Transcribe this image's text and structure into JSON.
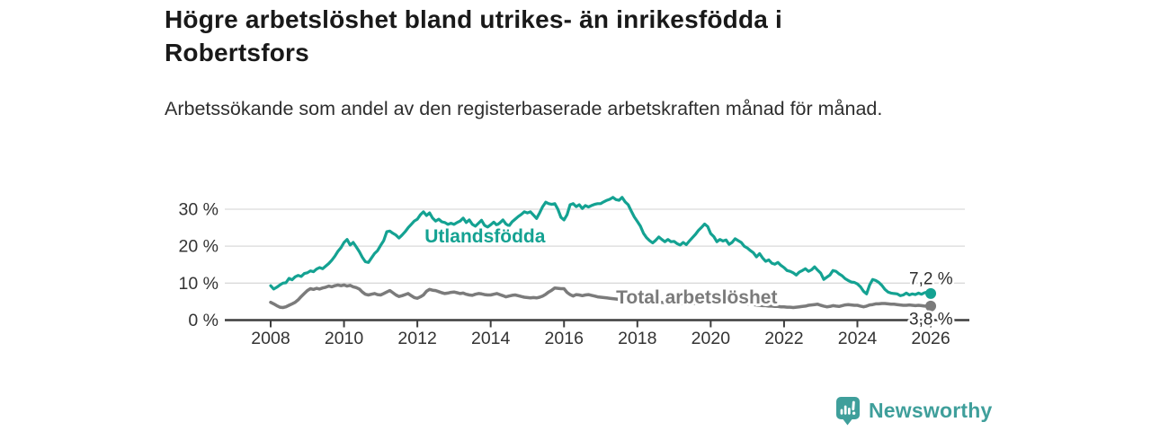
{
  "header": {
    "title": "Högre arbetslöshet bland utrikes- än inrikesfödda i Robertsfors",
    "subtitle": "Arbetssökande som andel av den registerbaserade arbetskraften månad för månad."
  },
  "footer": {
    "brand": "Newsworthy",
    "logo_icon": "bar-chart-speech-bubble-icon"
  },
  "colors": {
    "teal_series": "#14a292",
    "gray_series": "#7b7b7b",
    "logo_teal": "#3f9f9b",
    "grid": "#dadada",
    "axis": "#3d3d3d",
    "tick_text": "#333333",
    "value_text": "#2d2d2d"
  },
  "chart_data": {
    "type": "line",
    "title": "Högre arbetslöshet bland utrikes- än inrikesfödda i Robertsfors",
    "subtitle": "Arbetssökande som andel av den registerbaserade arbetskraften månad för månad.",
    "grid": true,
    "legend_position": "inline-labels",
    "x_start_year": 2008,
    "points_per_year": 12,
    "xlim_years": [
      2006.75,
      2026.95
    ],
    "ylim": [
      0,
      34
    ],
    "x_ticks": [
      "2008",
      "2010",
      "2012",
      "2014",
      "2016",
      "2018",
      "2020",
      "2022",
      "2024",
      "2026"
    ],
    "y_ticks": [
      "0 %",
      "10 %",
      "20 %",
      "30 %"
    ],
    "y_tick_values": [
      0,
      10,
      20,
      30
    ],
    "series": [
      {
        "name": "Utlandsfödda",
        "color": "#14a292",
        "end_value": 7.2,
        "end_label": "7,2 %",
        "end_label_side": "above",
        "label_anchor": {
          "year": 2012.2,
          "pct": 21.0
        },
        "values": [
          9.3,
          8.4,
          8.9,
          9.5,
          10.0,
          10.1,
          11.3,
          10.9,
          11.7,
          12.1,
          11.8,
          12.6,
          12.8,
          13.3,
          13.1,
          13.8,
          14.2,
          13.9,
          14.6,
          15.3,
          16.2,
          17.3,
          18.6,
          19.6,
          21.0,
          21.8,
          20.3,
          21.0,
          19.8,
          18.5,
          17.0,
          15.8,
          15.6,
          16.8,
          18.0,
          18.8,
          20.2,
          21.5,
          23.9,
          24.1,
          23.5,
          23.0,
          22.2,
          23.0,
          23.9,
          25.0,
          25.9,
          26.8,
          27.3,
          28.5,
          29.3,
          28.3,
          29.0,
          27.6,
          26.8,
          27.3,
          26.6,
          26.4,
          25.9,
          26.2,
          25.9,
          26.4,
          26.8,
          27.6,
          26.4,
          27.1,
          25.9,
          25.4,
          26.2,
          27.0,
          25.6,
          25.2,
          25.8,
          26.5,
          25.7,
          26.3,
          27.1,
          26.0,
          25.5,
          26.6,
          27.3,
          28.0,
          28.6,
          29.3,
          29.0,
          29.3,
          28.4,
          27.5,
          29.0,
          30.7,
          31.9,
          31.5,
          31.3,
          31.5,
          30.0,
          27.8,
          27.1,
          28.5,
          31.2,
          31.5,
          30.7,
          31.2,
          30.2,
          31.0,
          30.6,
          31.0,
          31.3,
          31.5,
          31.5,
          32.0,
          32.4,
          32.7,
          33.2,
          32.6,
          32.4,
          33.2,
          32.0,
          31.2,
          29.5,
          27.9,
          26.7,
          25.4,
          23.5,
          22.3,
          21.5,
          20.9,
          21.6,
          22.5,
          21.8,
          21.2,
          21.8,
          21.2,
          21.3,
          20.7,
          20.3,
          21.0,
          20.4,
          21.4,
          22.3,
          23.2,
          24.3,
          25.1,
          26.0,
          25.3,
          23.4,
          22.6,
          21.2,
          21.8,
          21.4,
          21.7,
          20.5,
          21.0,
          22.0,
          21.5,
          21.0,
          20.0,
          19.5,
          18.8,
          18.2,
          17.1,
          18.0,
          16.8,
          15.9,
          16.3,
          15.4,
          15.1,
          15.6,
          14.8,
          14.2,
          13.4,
          13.2,
          12.8,
          12.2,
          13.0,
          13.4,
          13.9,
          13.2,
          13.6,
          14.4,
          13.5,
          12.7,
          11.0,
          11.6,
          12.2,
          13.4,
          13.2,
          12.5,
          12.0,
          11.2,
          10.7,
          10.3,
          10.2,
          9.8,
          9.0,
          7.8,
          7.1,
          9.5,
          11.0,
          10.7,
          10.2,
          9.4,
          8.3,
          7.6,
          7.3,
          7.2,
          7.1,
          6.6,
          6.8,
          7.3,
          6.8,
          7.1,
          6.9,
          7.3,
          7.0,
          7.4,
          7.6,
          7.2
        ]
      },
      {
        "name": "Total arbetslöshet",
        "color": "#7b7b7b",
        "end_value": 3.8,
        "end_label": "3,8 %",
        "end_label_side": "below",
        "label_anchor": {
          "year": 2017.42,
          "pct": 4.5
        },
        "values": [
          4.8,
          4.4,
          3.9,
          3.5,
          3.4,
          3.6,
          4.0,
          4.4,
          4.8,
          5.5,
          6.4,
          7.2,
          8.0,
          8.5,
          8.3,
          8.6,
          8.4,
          8.7,
          8.9,
          9.2,
          9.0,
          9.3,
          9.5,
          9.3,
          9.5,
          9.2,
          9.4,
          9.0,
          8.8,
          8.4,
          7.6,
          7.0,
          6.8,
          7.0,
          7.2,
          6.9,
          6.8,
          7.2,
          7.6,
          8.0,
          7.4,
          6.8,
          6.4,
          6.6,
          6.9,
          7.2,
          6.6,
          6.1,
          5.9,
          6.3,
          6.8,
          7.8,
          8.3,
          8.1,
          8.0,
          7.7,
          7.4,
          7.2,
          7.3,
          7.5,
          7.6,
          7.4,
          7.2,
          7.3,
          7.0,
          6.8,
          6.7,
          7.0,
          7.2,
          7.1,
          6.9,
          6.8,
          6.8,
          7.0,
          7.2,
          6.9,
          6.6,
          6.3,
          6.5,
          6.7,
          6.8,
          6.6,
          6.4,
          6.2,
          6.1,
          6.0,
          6.1,
          6.0,
          6.2,
          6.5,
          7.0,
          7.6,
          8.1,
          8.7,
          8.6,
          8.5,
          8.5,
          7.5,
          6.9,
          6.5,
          6.9,
          6.8,
          6.6,
          6.8,
          6.9,
          6.7,
          6.5,
          6.3,
          6.2,
          6.1,
          6.0,
          5.9,
          5.8,
          5.7,
          5.6,
          5.5,
          5.5,
          5.4,
          5.3,
          5.2,
          5.2,
          5.1,
          5.1,
          5.0,
          5.0,
          4.9,
          4.9,
          4.8,
          4.8,
          4.7,
          4.7,
          4.6,
          4.6,
          4.5,
          4.5,
          4.4,
          4.4,
          4.5,
          4.5,
          4.6,
          4.6,
          4.7,
          4.7,
          4.8,
          4.9,
          5.0,
          5.2,
          5.3,
          5.2,
          5.1,
          5.0,
          4.9,
          4.8,
          4.7,
          4.6,
          4.5,
          4.4,
          4.3,
          4.2,
          4.1,
          4.0,
          3.9,
          3.9,
          3.8,
          3.8,
          3.7,
          3.7,
          3.6,
          3.6,
          3.5,
          3.5,
          3.4,
          3.5,
          3.6,
          3.7,
          3.8,
          4.0,
          4.1,
          4.2,
          4.3,
          4.0,
          3.8,
          3.6,
          3.7,
          3.9,
          3.8,
          3.7,
          3.9,
          4.1,
          4.2,
          4.1,
          4.0,
          4.0,
          3.8,
          3.6,
          3.8,
          4.1,
          4.2,
          4.4,
          4.4,
          4.5,
          4.5,
          4.4,
          4.3,
          4.3,
          4.2,
          4.1,
          4.0,
          4.0,
          4.1,
          4.0,
          3.9,
          4.0,
          3.9,
          3.8,
          3.8,
          3.8
        ]
      }
    ]
  }
}
